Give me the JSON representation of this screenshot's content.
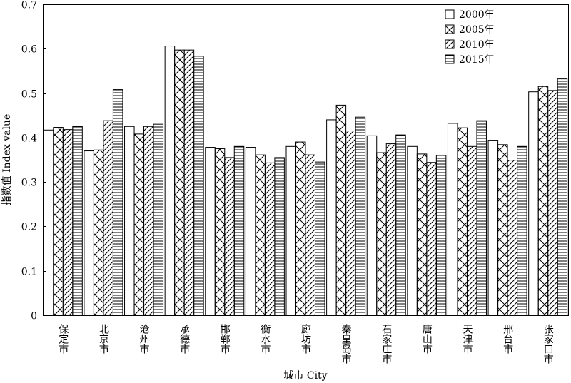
{
  "chart_data": {
    "type": "bar",
    "xlabel": "城市 City",
    "ylabel": "指数值 Index value",
    "ylim": [
      0,
      0.7
    ],
    "yticks": [
      "0",
      "0.1",
      "0.2",
      "0.3",
      "0.4",
      "0.5",
      "0.6",
      "0.7"
    ],
    "grid": false,
    "legend_position": "top-right",
    "categories": [
      "保定市",
      "北京市",
      "沧州市",
      "承德市",
      "邯郸市",
      "衡水市",
      "廊坊市",
      "秦皇岛市",
      "石家庄市",
      "唐山市",
      "天津市",
      "邢台市",
      "张家口市"
    ],
    "series": [
      {
        "name": "2000年",
        "pattern": "blank",
        "values": [
          0.417,
          0.37,
          0.425,
          0.606,
          0.378,
          0.378,
          0.38,
          0.44,
          0.404,
          0.38,
          0.432,
          0.394,
          0.503
        ]
      },
      {
        "name": "2005年",
        "pattern": "crosshatch",
        "values": [
          0.423,
          0.372,
          0.408,
          0.597,
          0.375,
          0.361,
          0.39,
          0.473,
          0.366,
          0.363,
          0.422,
          0.384,
          0.515
        ]
      },
      {
        "name": "2010年",
        "pattern": "diagonal",
        "values": [
          0.418,
          0.438,
          0.425,
          0.597,
          0.355,
          0.343,
          0.361,
          0.415,
          0.386,
          0.344,
          0.38,
          0.349,
          0.506
        ]
      },
      {
        "name": "2015年",
        "pattern": "horizontal",
        "values": [
          0.425,
          0.508,
          0.43,
          0.583,
          0.38,
          0.355,
          0.345,
          0.446,
          0.406,
          0.36,
          0.438,
          0.38,
          0.532
        ]
      }
    ]
  }
}
